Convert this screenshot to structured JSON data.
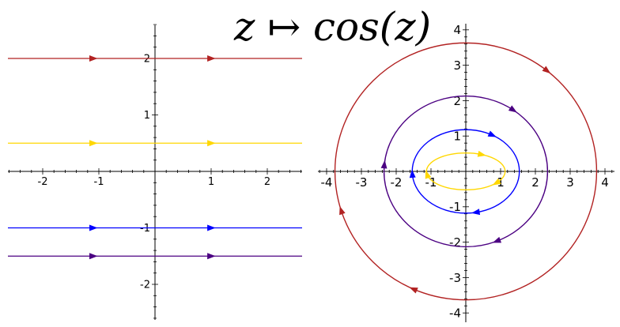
{
  "title": "z ↦ cos(z)",
  "chart_data": [
    {
      "type": "line",
      "title": "",
      "xlabel": "",
      "ylabel": "",
      "xlim": [
        -2.6,
        2.6
      ],
      "ylim": [
        -2.6,
        2.6
      ],
      "x_ticks": [
        -2,
        -1,
        1,
        2
      ],
      "y_ticks": [
        -2,
        -1,
        1,
        2
      ],
      "x_tick_labels": [
        "-2",
        "-1",
        "1",
        "2"
      ],
      "y_tick_labels": [
        "-2",
        "-1",
        "1",
        "2"
      ],
      "grid": false,
      "series": [
        {
          "y": 2.0,
          "color": "#b22222",
          "arrows_x": [
            -1.1,
            1.0
          ]
        },
        {
          "y": 0.5,
          "color": "#ffd700",
          "arrows_x": [
            -1.1,
            1.0
          ]
        },
        {
          "y": -1.0,
          "color": "#0000ff",
          "arrows_x": [
            -1.1,
            1.0
          ]
        },
        {
          "y": -1.5,
          "color": "#4b0082",
          "arrows_x": [
            -1.1,
            1.0
          ]
        }
      ]
    },
    {
      "type": "line",
      "title": "",
      "xlabel": "",
      "ylabel": "",
      "xlim": [
        -4.2,
        4.2
      ],
      "ylim": [
        -4.1,
        4.1
      ],
      "x_ticks": [
        -4,
        -3,
        -2,
        -1,
        1,
        2,
        3,
        4
      ],
      "y_ticks": [
        -4,
        -3,
        -2,
        -1,
        1,
        2,
        3,
        4
      ],
      "x_tick_labels": [
        "-4",
        "-3",
        "-2",
        "-1",
        "1",
        "2",
        "3",
        "4"
      ],
      "y_tick_labels": [
        "-4",
        "-3",
        "-2",
        "-1",
        "1",
        "2",
        "3",
        "4"
      ],
      "grid": false,
      "series": [
        {
          "semi_axis_x": 3.76,
          "semi_axis_y": 3.63,
          "color": "#b22222",
          "arrows_t": [
            0.9,
            3.45,
            4.3
          ]
        },
        {
          "semi_axis_x": 2.35,
          "semi_axis_y": 2.13,
          "color": "#4b0082",
          "arrows_t": [
            0.95,
            3.05,
            5.1
          ]
        },
        {
          "semi_axis_x": 1.54,
          "semi_axis_y": 1.18,
          "color": "#0000ff",
          "arrows_t": [
            1.05,
            3.2,
            4.9
          ]
        },
        {
          "semi_axis_x": 1.13,
          "semi_axis_y": 0.52,
          "color": "#ffd700",
          "arrows_t": [
            1.15,
            3.3,
            5.6
          ]
        }
      ]
    }
  ]
}
